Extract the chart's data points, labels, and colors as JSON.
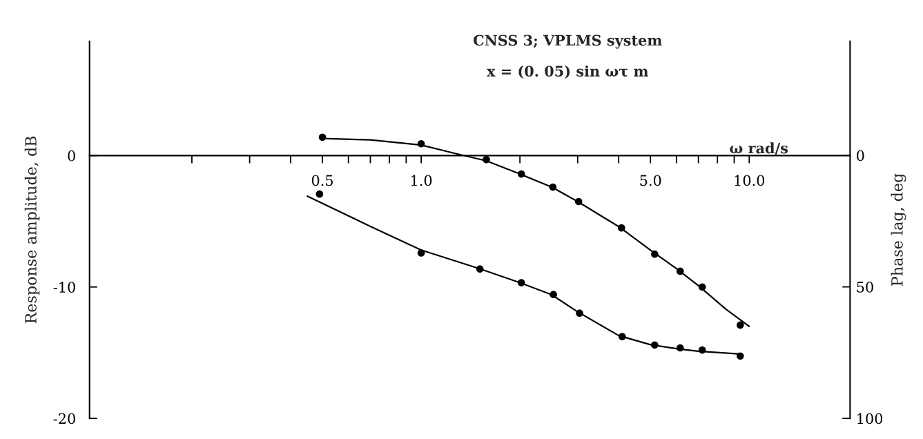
{
  "chart_data": {
    "type": "scatter",
    "title": "CNSS 3; VPLMS system",
    "subtitle": "x = (0. 05) sin ωτ m",
    "xlabel": "ω rad/s",
    "ylabel": "Response amplitude, dB",
    "y2label": "Phase lag, deg",
    "log": "x",
    "grid": false,
    "legend": false,
    "xlim": [
      0.0975,
      20.3
    ],
    "xticks": [
      {
        "value": 0.2,
        "label": null
      },
      {
        "value": 0.3,
        "label": null
      },
      {
        "value": 0.4,
        "label": null
      },
      {
        "value": 0.5,
        "label": "0.5"
      },
      {
        "value": 0.6,
        "label": null
      },
      {
        "value": 0.7,
        "label": null
      },
      {
        "value": 0.8,
        "label": null
      },
      {
        "value": 0.9,
        "label": null
      },
      {
        "value": 1.0,
        "label": "1.0"
      },
      {
        "value": 2,
        "label": null
      },
      {
        "value": 3,
        "label": null
      },
      {
        "value": 4,
        "label": null
      },
      {
        "value": 5.0,
        "label": "5.0"
      },
      {
        "value": 6,
        "label": null
      },
      {
        "value": 7,
        "label": null
      },
      {
        "value": 8,
        "label": null
      },
      {
        "value": 9,
        "label": null
      },
      {
        "value": 10.0,
        "label": "10.0"
      }
    ],
    "ylim": [
      -20,
      8.7
    ],
    "yticks": [
      {
        "value": 0,
        "label": "0"
      },
      {
        "value": -10,
        "label": "-10"
      },
      {
        "value": -20,
        "label": "-20"
      }
    ],
    "y2lim": [
      100,
      -43.4
    ],
    "y2ticks": [
      0,
      50,
      100
    ],
    "series": [
      {
        "marker": "circle",
        "color": "#000000",
        "x": [
          0.5,
          1.0,
          1.58,
          2.02,
          2.52,
          3.02,
          4.08,
          5.15,
          6.16,
          7.19,
          9.39
        ],
        "values": [
          1.4,
          0.9,
          -0.3,
          -1.4,
          -2.4,
          -3.5,
          -5.5,
          -7.5,
          -8.8,
          -10.0,
          -12.9
        ]
      },
      {
        "type": "line",
        "marker": "none",
        "color": "#000000",
        "x": [
          0.5,
          0.7,
          1.0,
          1.3,
          1.58,
          2.0,
          2.5,
          3.0,
          4.0,
          5.0,
          6.0,
          7.0,
          8.5,
          10.0
        ],
        "values": [
          1.3,
          1.2,
          0.8,
          0.1,
          -0.4,
          -1.4,
          -2.4,
          -3.5,
          -5.4,
          -7.2,
          -8.6,
          -9.9,
          -11.7,
          -13.0
        ]
      },
      {
        "marker": "circle",
        "axis": "y2",
        "color": "#000000",
        "x": [
          0.49,
          1.0,
          1.51,
          2.02,
          2.53,
          3.04,
          4.1,
          5.15,
          6.16,
          7.19,
          9.39
        ],
        "values": [
          14.7,
          37.1,
          43.2,
          48.4,
          52.9,
          60,
          68.9,
          72.1,
          73.2,
          74,
          76.3
        ]
      },
      {
        "type": "line",
        "marker": "none",
        "axis": "y2",
        "color": "#000000",
        "x": [
          0.45,
          0.7,
          1.0,
          1.5,
          2.0,
          2.5,
          3.0,
          4.0,
          5.0,
          6.0,
          7.0,
          9.4
        ],
        "values": [
          15.5,
          27,
          36,
          43,
          48.4,
          53,
          59.5,
          68.5,
          72,
          73.5,
          74.5,
          75.5
        ]
      }
    ]
  }
}
